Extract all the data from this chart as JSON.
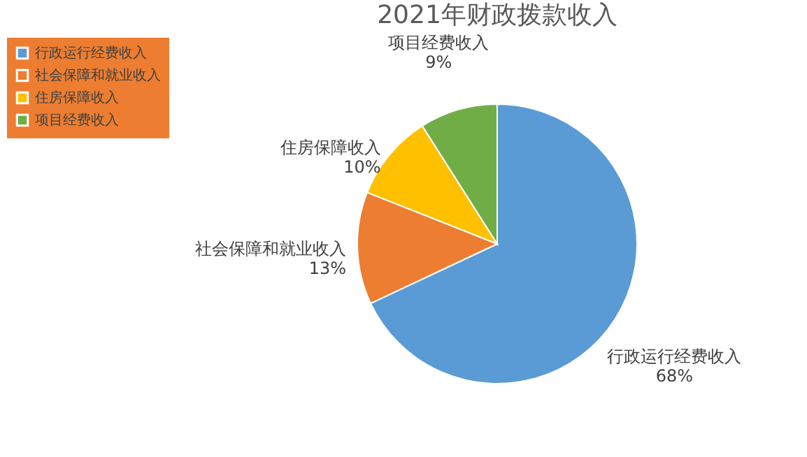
{
  "chart_data": {
    "type": "pie",
    "title": "2021年财政拨款收入",
    "categories": [
      "行政运行经费收入",
      "社会保障和就业收入",
      "住房保障收入",
      "项目经费收入"
    ],
    "values": [
      68,
      13,
      10,
      9
    ],
    "value_labels": [
      "68%",
      "13%",
      "10%",
      "9%"
    ],
    "colors": [
      "#5b9bd5",
      "#ed7d31",
      "#ffc000",
      "#70ad47"
    ],
    "legend": "left"
  }
}
